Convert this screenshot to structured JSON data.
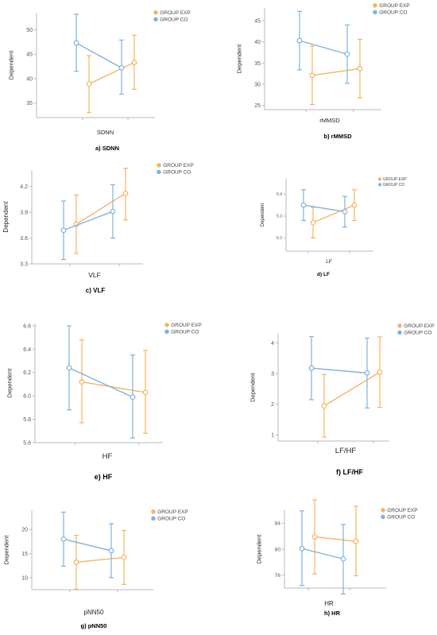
{
  "colors": {
    "exp": "#f5b461",
    "co": "#7fb2e0",
    "axis": "#b8b8b8"
  },
  "chart_data": [
    {
      "type": "line",
      "caption": "a) SDNN",
      "xlabel": "SDNN",
      "ylabel": "Dependent",
      "yticks": [
        "35",
        "40",
        "45",
        "50"
      ],
      "ylim": [
        32,
        53.5
      ],
      "series": [
        {
          "name": "GROUP EXP",
          "values": [
            38.9,
            43.3
          ],
          "lower": [
            33.0,
            37.8
          ],
          "upper": [
            44.7,
            48.9
          ]
        },
        {
          "name": "GROUP CO",
          "values": [
            47.3,
            42.2
          ],
          "lower": [
            41.5,
            36.8
          ],
          "upper": [
            53.2,
            47.9
          ]
        }
      ]
    },
    {
      "type": "line",
      "caption": "b) rMMSD",
      "xlabel": "rMMSD",
      "ylabel": "Dependent",
      "yticks": [
        "25",
        "30",
        "35",
        "40",
        "45"
      ],
      "ylim": [
        24,
        48
      ],
      "series": [
        {
          "name": "GROUP EXP",
          "values": [
            32.1,
            33.7
          ],
          "lower": [
            25.2,
            26.8
          ],
          "upper": [
            39.0,
            40.6
          ]
        },
        {
          "name": "GROUP CO",
          "values": [
            40.3,
            37.1
          ],
          "lower": [
            33.4,
            30.2
          ],
          "upper": [
            47.2,
            44.0
          ]
        }
      ]
    },
    {
      "type": "line",
      "caption": "c) VLF",
      "xlabel": "VLF",
      "ylabel": "Dependent",
      "yticks": [
        "3.3",
        "3.6",
        "3.9",
        "4.2"
      ],
      "ylim": [
        3.3,
        4.39
      ],
      "series": [
        {
          "name": "GROUP EXP",
          "values": [
            3.76,
            4.12
          ],
          "lower": [
            3.42,
            3.81
          ],
          "upper": [
            4.1,
            4.41
          ]
        },
        {
          "name": "GROUP CO",
          "values": [
            3.69,
            3.91
          ],
          "lower": [
            3.35,
            3.6
          ],
          "upper": [
            4.03,
            4.22
          ]
        }
      ]
    },
    {
      "type": "line",
      "caption": "d) LF",
      "xlabel": "LF",
      "ylabel": "Dependent",
      "yticks": [
        "5.2",
        "5.3",
        "5.4"
      ],
      "ylim": [
        5.14,
        5.47
      ],
      "series": [
        {
          "name": "GROUP EXP",
          "values": [
            5.27,
            5.35
          ],
          "lower": [
            5.2,
            5.28
          ],
          "upper": [
            5.34,
            5.42
          ]
        },
        {
          "name": "GROUP CO",
          "values": [
            5.35,
            5.32
          ],
          "lower": [
            5.28,
            5.25
          ],
          "upper": [
            5.42,
            5.39
          ]
        }
      ]
    },
    {
      "type": "line",
      "caption": "e) HF",
      "xlabel": "HF",
      "ylabel": "Dependent",
      "yticks": [
        "5.6",
        "5.8",
        "6.0",
        "6.2",
        "6.4",
        "6.6"
      ],
      "ylim": [
        5.6,
        6.62
      ],
      "series": [
        {
          "name": "GROUP EXP",
          "values": [
            6.12,
            6.03
          ],
          "lower": [
            5.77,
            5.68
          ],
          "upper": [
            6.48,
            6.39
          ]
        },
        {
          "name": "GROUP CO",
          "values": [
            6.24,
            5.99
          ],
          "lower": [
            5.88,
            5.64
          ],
          "upper": [
            6.6,
            6.35
          ]
        }
      ]
    },
    {
      "type": "line",
      "caption": "f) LF/HF",
      "xlabel": "LF/HF",
      "ylabel": "Dependent",
      "yticks": [
        "1",
        "2",
        "3",
        "4"
      ],
      "ylim": [
        0.8,
        4.3
      ],
      "series": [
        {
          "name": "GROUP EXP",
          "values": [
            1.95,
            3.05
          ],
          "lower": [
            0.93,
            1.9
          ],
          "upper": [
            2.98,
            4.2
          ]
        },
        {
          "name": "GROUP CO",
          "values": [
            3.18,
            3.02
          ],
          "lower": [
            2.15,
            1.88
          ],
          "upper": [
            4.21,
            4.16
          ]
        }
      ]
    },
    {
      "type": "line",
      "caption": "g) pNN50",
      "xlabel": "pNN50",
      "ylabel": "Dependent",
      "yticks": [
        "10",
        "15",
        "20"
      ],
      "ylim": [
        7.5,
        24
      ],
      "series": [
        {
          "name": "GROUP EXP",
          "values": [
            13.2,
            14.2
          ],
          "lower": [
            7.6,
            8.6
          ],
          "upper": [
            18.8,
            19.8
          ]
        },
        {
          "name": "GROUP CO",
          "values": [
            18.0,
            15.6
          ],
          "lower": [
            12.4,
            10.0
          ],
          "upper": [
            23.6,
            21.2
          ]
        }
      ]
    },
    {
      "type": "line",
      "caption": "h) HR",
      "xlabel": "HR",
      "ylabel": "Dependent",
      "yticks": [
        "76",
        "80",
        "84"
      ],
      "ylim": [
        74,
        86
      ],
      "series": [
        {
          "name": "GROUP EXP",
          "values": [
            81.9,
            81.2
          ],
          "lower": [
            76.2,
            75.9
          ],
          "upper": [
            87.6,
            86.6
          ]
        },
        {
          "name": "GROUP CO",
          "values": [
            80.1,
            78.5
          ],
          "lower": [
            74.4,
            73.1
          ],
          "upper": [
            85.9,
            83.8
          ]
        }
      ]
    }
  ]
}
